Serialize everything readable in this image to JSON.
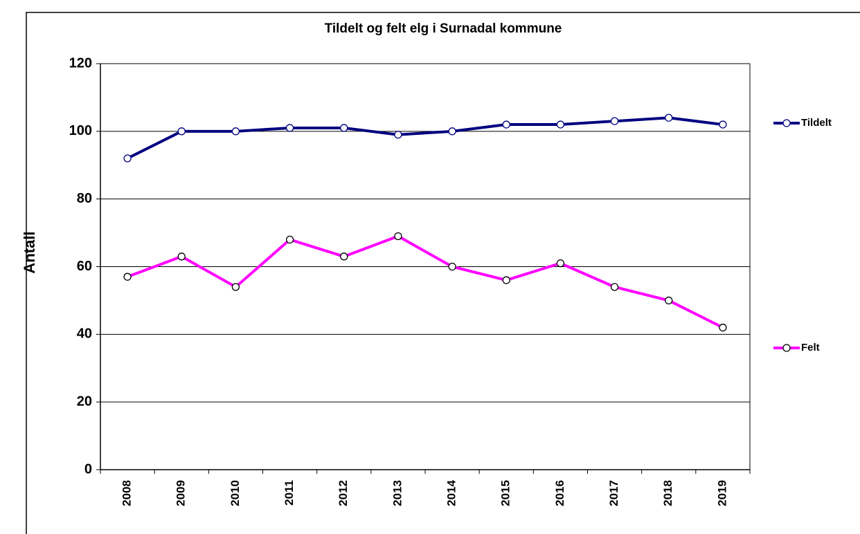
{
  "chart_data": {
    "type": "line",
    "title": "Tildelt og felt elg i Surnadal kommune",
    "y_label": "Antall",
    "categories": [
      "2008",
      "2009",
      "2010",
      "2011",
      "2012",
      "2013",
      "2014",
      "2015",
      "2016",
      "2017",
      "2018",
      "2019"
    ],
    "series": [
      {
        "name": "Tildelt",
        "color": "#000080",
        "values": [
          92,
          100,
          100,
          101,
          101,
          99,
          100,
          102,
          102,
          103,
          104,
          102
        ]
      },
      {
        "name": "Felt",
        "color": "#ff00ff",
        "values": [
          57,
          63,
          54,
          68,
          63,
          69,
          60,
          56,
          61,
          54,
          50,
          42
        ]
      }
    ],
    "ylim": [
      0,
      120
    ],
    "yticks": [
      0,
      20,
      40,
      60,
      80,
      100,
      120
    ],
    "grid": true,
    "legend": "right"
  }
}
